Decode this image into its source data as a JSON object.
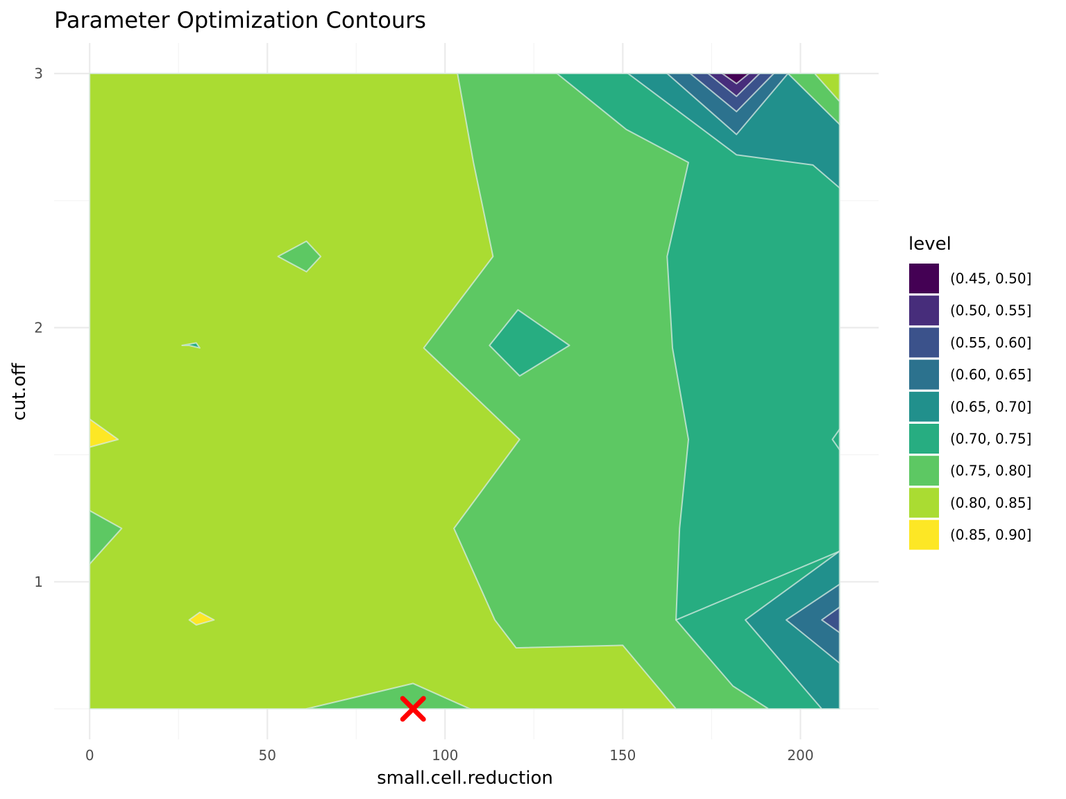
{
  "chart_data": {
    "type": "contour",
    "title": "Parameter Optimization Contours",
    "xlabel": "small.cell.reduction",
    "ylabel": "cut.off",
    "xlim": [
      -10,
      222
    ],
    "ylim": [
      0.38,
      3.12
    ],
    "x_ticks": [
      0,
      50,
      100,
      150,
      200
    ],
    "x_tick_labels": [
      "0",
      "50",
      "100",
      "150",
      "200"
    ],
    "y_ticks": [
      1,
      2,
      3
    ],
    "y_tick_labels": [
      "1",
      "2",
      "3"
    ],
    "x_minor": [
      25,
      75,
      125,
      175
    ],
    "y_minor": [
      0.5,
      1.5,
      2.5
    ],
    "grid": true,
    "legend": {
      "title": "level",
      "position": "right",
      "entries": [
        {
          "label": "(0.45, 0.50]",
          "color": "#440154"
        },
        {
          "label": "(0.50, 0.55]",
          "color": "#472D7B"
        },
        {
          "label": "(0.55, 0.60]",
          "color": "#3B528B"
        },
        {
          "label": "(0.60, 0.65]",
          "color": "#2C728E"
        },
        {
          "label": "(0.65, 0.70]",
          "color": "#21908C"
        },
        {
          "label": "(0.70, 0.75]",
          "color": "#27AD81"
        },
        {
          "label": "(0.75, 0.80]",
          "color": "#5DC863"
        },
        {
          "label": "(0.80, 0.85]",
          "color": "#AADC32"
        },
        {
          "label": "(0.85, 0.90]",
          "color": "#FDE725"
        }
      ]
    },
    "regions": [
      {
        "level": "(0.80, 0.85]",
        "points": [
          [
            0,
            0.5
          ],
          [
            0,
            3
          ],
          [
            211,
            3
          ],
          [
            211,
            0.5
          ]
        ]
      },
      {
        "level": "(0.75, 0.80]",
        "points": [
          [
            103.5,
            3
          ],
          [
            108,
            2.65
          ],
          [
            113.5,
            2.28
          ],
          [
            94,
            1.92
          ],
          [
            121,
            1.56
          ],
          [
            102.5,
            1.21
          ],
          [
            114,
            0.85
          ],
          [
            120,
            0.74
          ],
          [
            150,
            0.75
          ],
          [
            165,
            0.5
          ],
          [
            211,
            0.5
          ],
          [
            211,
            3
          ]
        ]
      },
      {
        "level": "(0.70, 0.75]",
        "points": [
          [
            131.5,
            3
          ],
          [
            151,
            2.78
          ],
          [
            168.5,
            2.65
          ],
          [
            162.5,
            2.28
          ],
          [
            164,
            1.92
          ],
          [
            168.5,
            1.56
          ],
          [
            166,
            1.21
          ],
          [
            165,
            0.85
          ],
          [
            211,
            0.85
          ],
          [
            211,
            3
          ]
        ]
      },
      {
        "level": "(0.65, 0.70]",
        "points": [
          [
            151.5,
            3
          ],
          [
            182,
            2.68
          ],
          [
            203.5,
            2.64
          ],
          [
            211,
            2.55
          ],
          [
            211,
            3
          ]
        ]
      },
      {
        "level": "(0.80, 0.85]",
        "points": [
          [
            200,
            3
          ],
          [
            211,
            3
          ],
          [
            211,
            2.8
          ],
          [
            211,
            2.89
          ]
        ]
      },
      {
        "level": "(0.75, 0.80]",
        "points": [
          [
            196.5,
            3
          ],
          [
            204,
            3
          ],
          [
            211,
            2.89
          ],
          [
            211,
            2.8
          ]
        ]
      },
      {
        "level": "(0.60, 0.65]",
        "points": [
          [
            162.5,
            3
          ],
          [
            182,
            2.76
          ],
          [
            196.5,
            3
          ]
        ]
      },
      {
        "level": "(0.55, 0.60]",
        "points": [
          [
            169,
            3
          ],
          [
            182,
            2.85
          ],
          [
            192.5,
            3
          ]
        ]
      },
      {
        "level": "(0.50, 0.55]",
        "points": [
          [
            174,
            3
          ],
          [
            182,
            2.91
          ],
          [
            188.5,
            3
          ]
        ]
      },
      {
        "level": "(0.45, 0.50]",
        "points": [
          [
            178,
            3
          ],
          [
            182,
            2.96
          ],
          [
            185.5,
            3
          ]
        ]
      },
      {
        "level": "(0.70, 0.75]",
        "points": [
          [
            112.5,
            1.93
          ],
          [
            120.5,
            2.07
          ],
          [
            135,
            1.93
          ],
          [
            121,
            1.81
          ]
        ]
      },
      {
        "level": "(0.75, 0.80]",
        "points": [
          [
            53,
            2.28
          ],
          [
            61,
            2.34
          ],
          [
            65,
            2.28
          ],
          [
            61,
            2.22
          ]
        ]
      },
      {
        "level": "(0.70, 0.75]",
        "points": [
          [
            26,
            1.93
          ],
          [
            30,
            1.94
          ],
          [
            31,
            1.92
          ],
          [
            28,
            1.93
          ]
        ]
      },
      {
        "level": "(0.70, 0.75]",
        "points": [
          [
            211,
            1.6
          ],
          [
            211,
            1.52
          ],
          [
            209,
            1.56
          ]
        ]
      },
      {
        "level": "(0.85, 0.90]",
        "points": [
          [
            0,
            1.64
          ],
          [
            0,
            1.53
          ],
          [
            8,
            1.56
          ]
        ]
      },
      {
        "level": "(0.75, 0.80]",
        "points": [
          [
            0,
            1.28
          ],
          [
            9,
            1.21
          ],
          [
            0,
            1.07
          ]
        ]
      },
      {
        "level": "(0.85, 0.90]",
        "points": [
          [
            28,
            0.85
          ],
          [
            31,
            0.88
          ],
          [
            35,
            0.85
          ],
          [
            30,
            0.83
          ]
        ]
      },
      {
        "level": "(0.75, 0.80]",
        "points": [
          [
            61,
            0.5
          ],
          [
            91,
            0.6
          ],
          [
            107,
            0.5
          ]
        ]
      },
      {
        "level": "(0.70, 0.75]",
        "points": [
          [
            165,
            0.85
          ],
          [
            181,
            0.59
          ],
          [
            191,
            0.5
          ],
          [
            211,
            0.5
          ],
          [
            211,
            1.12
          ]
        ]
      },
      {
        "level": "(0.65, 0.70]",
        "points": [
          [
            184.5,
            0.85
          ],
          [
            211,
            1.12
          ],
          [
            211,
            0.5
          ],
          [
            206,
            0.5
          ]
        ]
      },
      {
        "level": "(0.60, 0.65]",
        "points": [
          [
            196,
            0.85
          ],
          [
            211,
            0.99
          ],
          [
            211,
            0.68
          ]
        ]
      },
      {
        "level": "(0.55, 0.60]",
        "points": [
          [
            206,
            0.85
          ],
          [
            211,
            0.9
          ],
          [
            211,
            0.8
          ]
        ]
      }
    ],
    "marker": {
      "x": 91,
      "y": 0.5,
      "symbol": "x",
      "color": "#FF0000"
    }
  }
}
